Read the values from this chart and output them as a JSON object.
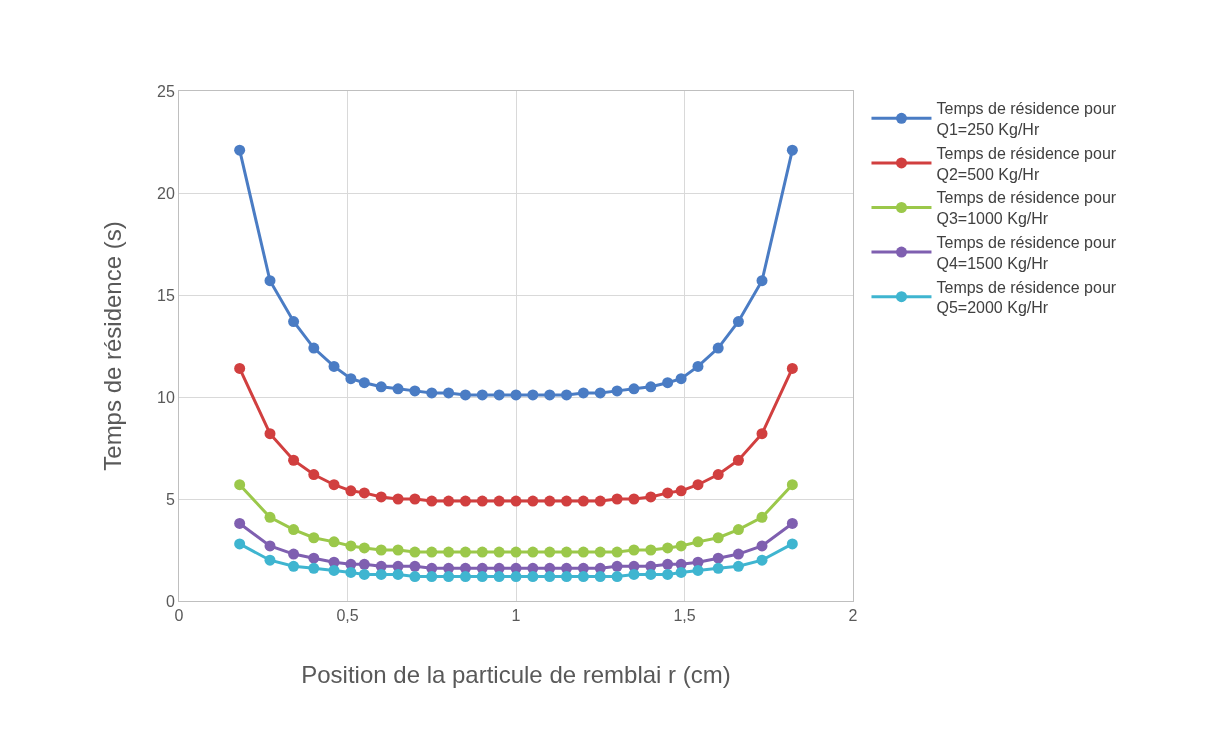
{
  "chart_data": {
    "type": "line",
    "xlabel": "Position de la particule de remblai r (cm)",
    "ylabel": "Temps de résidence (s)",
    "x": [
      0.18,
      0.27,
      0.34,
      0.4,
      0.46,
      0.51,
      0.55,
      0.6,
      0.65,
      0.7,
      0.75,
      0.8,
      0.85,
      0.9,
      0.95,
      1.0,
      1.05,
      1.1,
      1.15,
      1.2,
      1.25,
      1.3,
      1.35,
      1.4,
      1.45,
      1.49,
      1.54,
      1.6,
      1.66,
      1.73,
      1.82
    ],
    "series": [
      {
        "name": "Temps de résidence pour Q1=250 Kg/Hr",
        "color": "#4a7cc4",
        "values": [
          22.1,
          15.7,
          13.7,
          12.4,
          11.5,
          10.9,
          10.7,
          10.5,
          10.4,
          10.3,
          10.2,
          10.2,
          10.1,
          10.1,
          10.1,
          10.1,
          10.1,
          10.1,
          10.1,
          10.2,
          10.2,
          10.3,
          10.4,
          10.5,
          10.7,
          10.9,
          11.5,
          12.4,
          13.7,
          15.7,
          22.1
        ]
      },
      {
        "name": "Temps de résidence pour Q2=500 Kg/Hr",
        "color": "#d13f3f",
        "values": [
          11.4,
          8.2,
          6.9,
          6.2,
          5.7,
          5.4,
          5.3,
          5.1,
          5.0,
          5.0,
          4.9,
          4.9,
          4.9,
          4.9,
          4.9,
          4.9,
          4.9,
          4.9,
          4.9,
          4.9,
          4.9,
          5.0,
          5.0,
          5.1,
          5.3,
          5.4,
          5.7,
          6.2,
          6.9,
          8.2,
          11.4
        ]
      },
      {
        "name": "Temps de résidence pour Q3=1000 Kg/Hr",
        "color": "#9bc84a",
        "values": [
          5.7,
          4.1,
          3.5,
          3.1,
          2.9,
          2.7,
          2.6,
          2.5,
          2.5,
          2.4,
          2.4,
          2.4,
          2.4,
          2.4,
          2.4,
          2.4,
          2.4,
          2.4,
          2.4,
          2.4,
          2.4,
          2.4,
          2.5,
          2.5,
          2.6,
          2.7,
          2.9,
          3.1,
          3.5,
          4.1,
          5.7
        ]
      },
      {
        "name": "Temps de résidence pour Q4=1500 Kg/Hr",
        "color": "#7f5fb0",
        "values": [
          3.8,
          2.7,
          2.3,
          2.1,
          1.9,
          1.8,
          1.8,
          1.7,
          1.7,
          1.7,
          1.6,
          1.6,
          1.6,
          1.6,
          1.6,
          1.6,
          1.6,
          1.6,
          1.6,
          1.6,
          1.6,
          1.7,
          1.7,
          1.7,
          1.8,
          1.8,
          1.9,
          2.1,
          2.3,
          2.7,
          3.8
        ]
      },
      {
        "name": "Temps de résidence pour Q5=2000 Kg/Hr",
        "color": "#3fb5d0",
        "values": [
          2.8,
          2.0,
          1.7,
          1.6,
          1.5,
          1.4,
          1.3,
          1.3,
          1.3,
          1.2,
          1.2,
          1.2,
          1.2,
          1.2,
          1.2,
          1.2,
          1.2,
          1.2,
          1.2,
          1.2,
          1.2,
          1.2,
          1.3,
          1.3,
          1.3,
          1.4,
          1.5,
          1.6,
          1.7,
          2.0,
          2.8
        ]
      }
    ],
    "xlim": [
      0,
      2
    ],
    "xticks": [
      0,
      {
        "value": 0.5,
        "label": "0,5"
      },
      1,
      {
        "value": 1.5,
        "label": "1,5"
      },
      2
    ],
    "ylim": [
      0,
      25
    ],
    "yticks": [
      0,
      5,
      10,
      15,
      20,
      25
    ],
    "grid": true,
    "legend": "right",
    "marker": "circle",
    "line_style": "solid"
  }
}
